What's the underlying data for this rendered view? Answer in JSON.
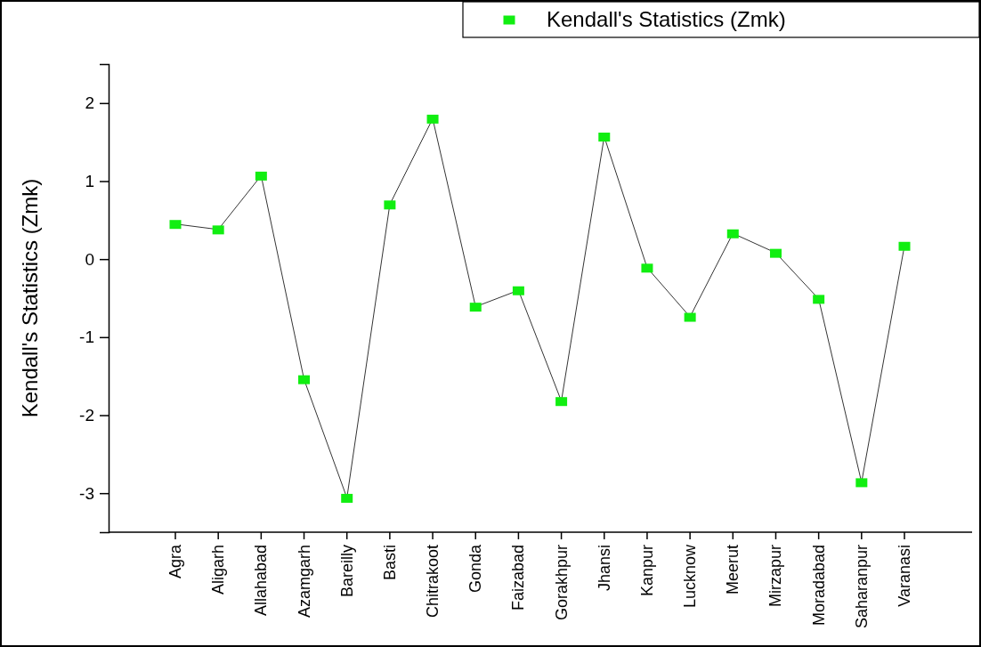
{
  "chart_data": {
    "type": "line",
    "ylabel": "Kendall's Statistics (Zmk)",
    "categories": [
      "Agra",
      "Aligarh",
      "Allahabad",
      "Azamgarh",
      "Bareilly",
      "Basti",
      "Chitrakoot",
      "Gonda",
      "Faizabad",
      "Gorakhpur",
      "Jhansi",
      "Kanpur",
      "Lucknow",
      "Meerut",
      "Mirzapur",
      "Moradabad",
      "Saharanpur",
      "Varanasi"
    ],
    "series": [
      {
        "name": "Kendall's Statistics (Zmk)",
        "color": "#11ee11",
        "values": [
          0.45,
          0.38,
          1.07,
          -1.54,
          -3.06,
          0.7,
          1.8,
          -0.61,
          -0.4,
          -1.82,
          1.57,
          -0.11,
          -0.74,
          0.33,
          0.08,
          -0.51,
          -2.86,
          0.17
        ]
      }
    ],
    "ylim": [
      -3.5,
      2.5
    ],
    "yticks": [
      -3,
      -2,
      -1,
      0,
      1,
      2
    ],
    "marker": "square",
    "line_style": "solid",
    "legend": "top right",
    "grid": false
  }
}
